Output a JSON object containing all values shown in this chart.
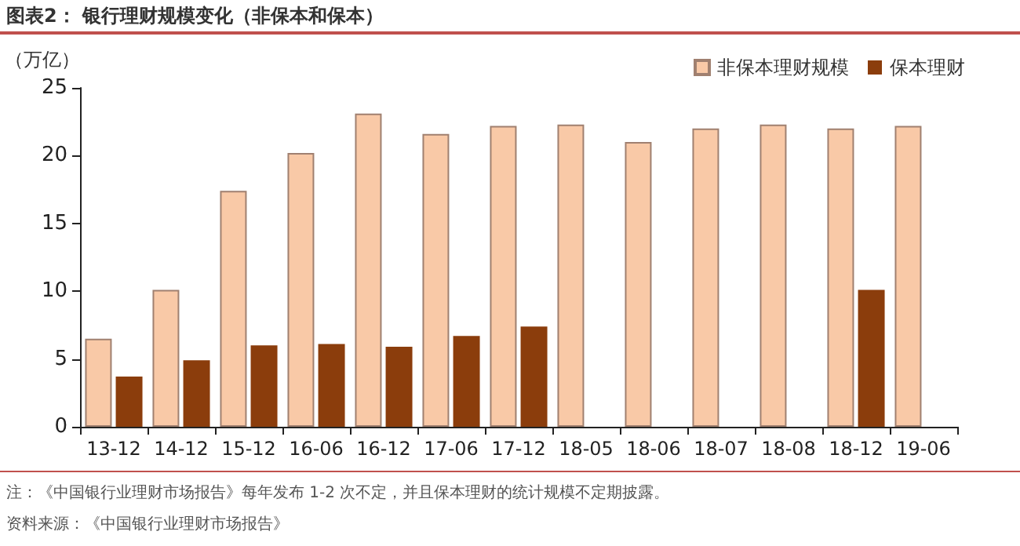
{
  "chart_data": {
    "type": "bar",
    "title": "图表2：  银行理财规模变化（非保本和保本）",
    "ylabel": "（万亿）",
    "categories": [
      "13-12",
      "14-12",
      "15-12",
      "16-06",
      "16-12",
      "17-06",
      "17-12",
      "18-05",
      "18-06",
      "18-07",
      "18-08",
      "18-12",
      "19-06"
    ],
    "series": [
      {
        "name": "非保本理财规模",
        "color": "#f9c9a7",
        "values": [
          6.5,
          10.1,
          17.4,
          20.2,
          23.1,
          21.6,
          22.2,
          22.3,
          21.0,
          22.0,
          22.3,
          22.0,
          22.2
        ]
      },
      {
        "name": "保本理财",
        "color": "#8b3d0c",
        "values": [
          3.7,
          4.9,
          6.0,
          6.1,
          5.9,
          6.7,
          7.4,
          null,
          null,
          null,
          null,
          10.1,
          null
        ]
      }
    ],
    "ylim": [
      0,
      25
    ],
    "yticks": [
      0,
      5,
      10,
      15,
      20,
      25
    ],
    "grid": false,
    "legend": "top right",
    "annotations": [
      "注：《中国银行业理财市场报告》每年发布 1-2 次不定，并且保本理财的统计规模不定期披露。",
      "资料来源：《中国银行业理财市场报告》"
    ]
  }
}
